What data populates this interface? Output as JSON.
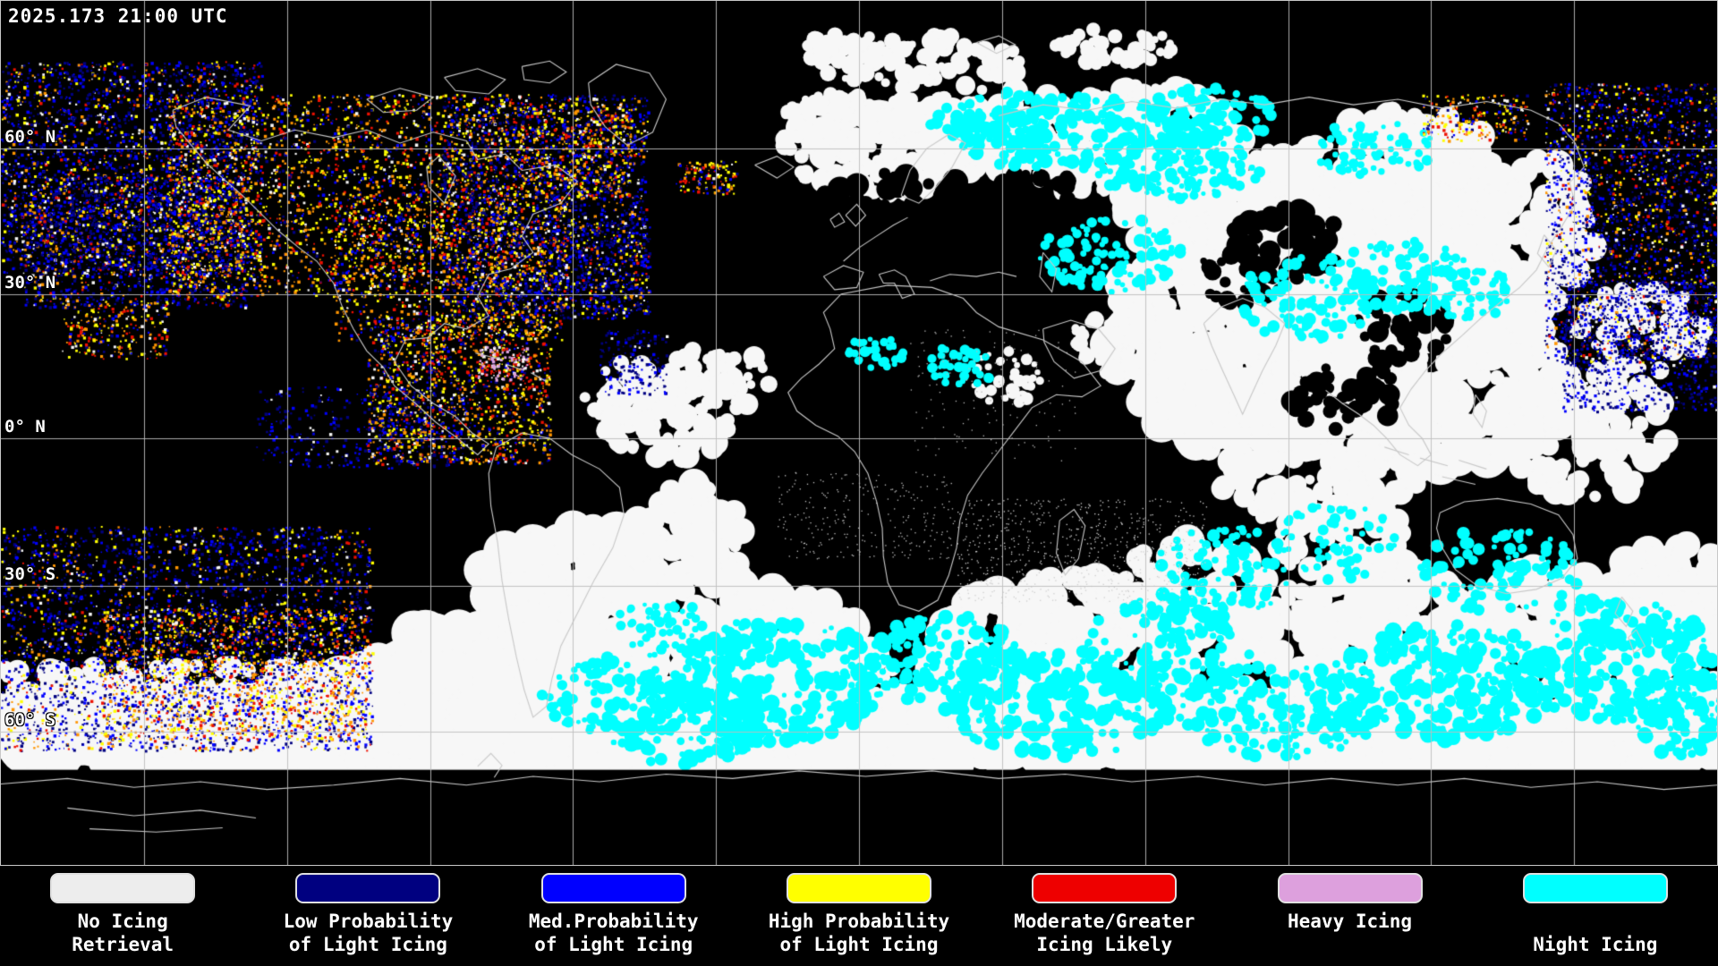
{
  "header": {
    "timestamp": "2025.173 21:00 UTC"
  },
  "map": {
    "latitude_labels": [
      "60° N",
      "30° N",
      "0° N",
      "30° S",
      "60° S"
    ]
  },
  "map_palette": {
    "background": "#000000",
    "no_icing": "#F7F7F7",
    "low_prob": "#000080",
    "med_prob": "#0000FF",
    "high_prob": "#FFFF00",
    "moderate": "#EE1000",
    "heavy": "#DDA0DD",
    "night": "#00FFFF",
    "speckle_orange": "#FF9500",
    "coastline": "#C8C8C8",
    "gridline": "#BEBEBE"
  },
  "legend": {
    "items": [
      {
        "id": "no-icing-retrieval",
        "color": "#EDEDED",
        "line1": "No Icing",
        "line2": "Retrieval"
      },
      {
        "id": "low-probability",
        "color": "#000080",
        "line1": "Low Probability",
        "line2": "of Light Icing"
      },
      {
        "id": "med-probability",
        "color": "#0000FF",
        "line1": "Med.Probability",
        "line2": "of Light Icing"
      },
      {
        "id": "high-probability",
        "color": "#FFFF00",
        "line1": "High Probability",
        "line2": "of Light Icing"
      },
      {
        "id": "moderate-greater",
        "color": "#EE0000",
        "line1": "Moderate/Greater",
        "line2": "Icing Likely"
      },
      {
        "id": "heavy-icing",
        "color": "#DDA0DD",
        "line1": "Heavy Icing",
        "line2": ""
      },
      {
        "id": "night-icing",
        "color": "#00FFFF",
        "line1": "",
        "line2": "Night Icing"
      }
    ]
  }
}
